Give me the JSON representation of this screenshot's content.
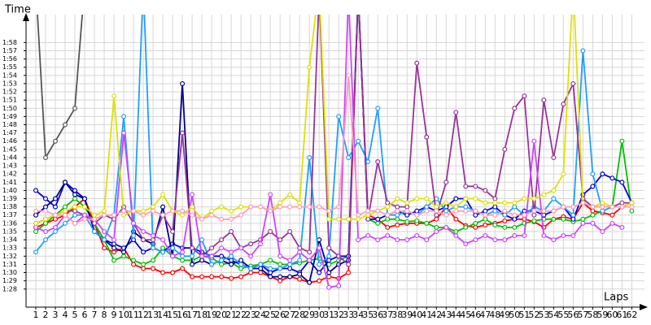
{
  "chart_data": {
    "type": "line",
    "x_label": "Laps",
    "y_label": "Time",
    "x": [
      1,
      2,
      3,
      4,
      5,
      6,
      7,
      8,
      9,
      10,
      11,
      12,
      13,
      14,
      15,
      16,
      17,
      18,
      19,
      20,
      21,
      22,
      23,
      24,
      25,
      26,
      27,
      28,
      29,
      30,
      31,
      32,
      33,
      34,
      35,
      36,
      37,
      38,
      39,
      40,
      41,
      42,
      43,
      44,
      45,
      46,
      47,
      48,
      49,
      50,
      51,
      52,
      53,
      54,
      55,
      56,
      57,
      58,
      59,
      60,
      61,
      62
    ],
    "xlim": [
      0,
      63.3
    ],
    "xticks": [
      1,
      2,
      3,
      4,
      5,
      6,
      7,
      8,
      9,
      10,
      11,
      12,
      13,
      14,
      15,
      16,
      17,
      18,
      19,
      20,
      21,
      22,
      23,
      24,
      25,
      26,
      27,
      28,
      29,
      30,
      31,
      32,
      33,
      34,
      35,
      36,
      37,
      38,
      39,
      40,
      41,
      42,
      43,
      44,
      45,
      46,
      47,
      48,
      49,
      50,
      51,
      52,
      53,
      54,
      55,
      56,
      57,
      58,
      59,
      60,
      61,
      62
    ],
    "ylim": [
      85.8,
      121.4
    ],
    "yticks": [
      {
        "value": 88,
        "label": "1:28"
      },
      {
        "value": 89,
        "label": "1:29"
      },
      {
        "value": 90,
        "label": "1:30"
      },
      {
        "value": 91,
        "label": "1:31"
      },
      {
        "value": 92,
        "label": "1:32"
      },
      {
        "value": 93,
        "label": "1:33"
      },
      {
        "value": 94,
        "label": "1:34"
      },
      {
        "value": 95,
        "label": "1:35"
      },
      {
        "value": 96,
        "label": "1:36"
      },
      {
        "value": 97,
        "label": "1:37"
      },
      {
        "value": 98,
        "label": "1:38"
      },
      {
        "value": 99,
        "label": "1:39"
      },
      {
        "value": 100,
        "label": "1:40"
      },
      {
        "value": 101,
        "label": "1:41"
      },
      {
        "value": 102,
        "label": "1:42"
      },
      {
        "value": 103,
        "label": "1:43"
      },
      {
        "value": 104,
        "label": "1:44"
      },
      {
        "value": 105,
        "label": "1:45"
      },
      {
        "value": 106,
        "label": "1:46"
      },
      {
        "value": 107,
        "label": "1:47"
      },
      {
        "value": 108,
        "label": "1:48"
      },
      {
        "value": 109,
        "label": "1:49"
      },
      {
        "value": 110,
        "label": "1:50"
      },
      {
        "value": 111,
        "label": "1:51"
      },
      {
        "value": 112,
        "label": "1:52"
      },
      {
        "value": 113,
        "label": "1:53"
      },
      {
        "value": 114,
        "label": "1:54"
      },
      {
        "value": 115,
        "label": "1:55"
      },
      {
        "value": 116,
        "label": "1:56"
      },
      {
        "value": 117,
        "label": "1:57"
      },
      {
        "value": 118,
        "label": "1:58"
      }
    ],
    "grid": true,
    "series": [
      {
        "color": "#ff0000",
        "values": [
          95.5,
          96,
          96.5,
          97,
          98,
          99,
          96,
          93,
          92.5,
          93,
          91,
          90.5,
          90.5,
          90,
          90,
          90.5,
          89.5,
          89.5,
          89.5,
          89.5,
          89.3,
          89.5,
          90,
          90,
          89.5,
          89,
          89.5,
          89.2,
          88.8,
          89,
          89.5,
          89.3,
          90,
          124,
          97,
          96.5,
          95.5,
          95.8,
          96,
          96,
          96,
          96.5,
          98,
          96.5,
          95.7,
          95.5,
          95.8,
          96,
          96.3,
          96.5,
          96.5,
          96.2,
          95.5,
          96.5,
          96.8,
          96.5,
          98.5,
          97.5,
          97.3,
          97,
          98,
          98.5
        ]
      },
      {
        "color": "#00c000",
        "values": [
          95,
          96,
          97,
          98,
          99,
          98,
          96,
          94,
          91.5,
          92,
          91.5,
          91,
          91.5,
          93,
          92,
          91.5,
          91.5,
          92,
          91.8,
          91,
          91.2,
          90.5,
          90.8,
          91,
          91.5,
          91,
          91,
          91.2,
          91.5,
          91.7,
          91,
          91.5,
          92,
          124,
          96.5,
          96,
          96.5,
          96.5,
          96.2,
          96.3,
          96,
          95.5,
          95.5,
          95,
          95.5,
          96,
          96.5,
          95.8,
          95.5,
          95.5,
          96,
          96.3,
          96.5,
          96.5,
          96.5,
          96.2,
          96.5,
          97,
          97.5,
          98,
          106,
          97.5
        ]
      },
      {
        "color": "#0000dd",
        "values": [
          100,
          99,
          98,
          101,
          100,
          99,
          95,
          94,
          93.5,
          93,
          94,
          92.5,
          93,
          92.5,
          93.5,
          93,
          93,
          92.5,
          92,
          92,
          91.5,
          91,
          90.5,
          91,
          90,
          90.5,
          90.5,
          90,
          91.5,
          90,
          91.5,
          92,
          92,
          124,
          96.5,
          96.5,
          97,
          97.5,
          97,
          97.5,
          98,
          97.5,
          98,
          99,
          99,
          97,
          97.5,
          98,
          97,
          96.5,
          97.5,
          97.5,
          97,
          97.5,
          98,
          96.5,
          99.5,
          100.5,
          102,
          101.5,
          101,
          98.5
        ]
      },
      {
        "color": "#00008b",
        "values": [
          97,
          98,
          99,
          101,
          99.5,
          99,
          95,
          94,
          93,
          92.5,
          95,
          94,
          93.5,
          98,
          92,
          113,
          91,
          91.5,
          91,
          91.5,
          91,
          91.5,
          90.5,
          90.5,
          89.5,
          89.5,
          89.5,
          89.8,
          88.8,
          94,
          90,
          91,
          91.5,
          null,
          null,
          null,
          null,
          null,
          null,
          null,
          null,
          null,
          null,
          null,
          null,
          null,
          null,
          null,
          null,
          null,
          null,
          null,
          null,
          null,
          null,
          null,
          null,
          null,
          null,
          null,
          null,
          null
        ]
      },
      {
        "color": "#1e9fff",
        "values": [
          92.5,
          94,
          95,
          96,
          97,
          97,
          95,
          94,
          97,
          109,
          94.5,
          125,
          93,
          92.5,
          93,
          92,
          92,
          94,
          91,
          91.5,
          92,
          91,
          90.5,
          91,
          90.5,
          90.5,
          91,
          91.5,
          104,
          91,
          92,
          109,
          104,
          106,
          103.5,
          110,
          97,
          97,
          97.5,
          97,
          98,
          99,
          97.5,
          98,
          98,
          97.5,
          97,
          97.5,
          97,
          98,
          97,
          98,
          97.5,
          99,
          98,
          97,
          117,
          102,
          97.5,
          98,
          98,
          98.5
        ]
      },
      {
        "color": "#993399",
        "values": [
          96,
          96.5,
          97,
          97.5,
          97.5,
          97,
          96,
          97,
          96.5,
          98,
          96,
          94,
          94,
          97,
          95,
          107,
          93,
          92,
          93,
          94,
          95,
          93,
          93.5,
          94,
          95,
          94,
          95,
          93,
          92.5,
          124,
          93,
          92,
          91,
          124,
          96.5,
          103.5,
          98.5,
          98,
          98,
          115.5,
          106.5,
          97,
          101,
          109.5,
          100.5,
          100.5,
          100,
          99,
          105,
          110,
          111.5,
          97,
          111,
          104,
          110.5,
          113,
          99,
          98,
          98,
          98,
          98.5,
          98.5
        ]
      },
      {
        "color": "#cc44ff",
        "values": [
          95.5,
          95,
          95.5,
          97,
          96,
          97,
          96.5,
          95,
          94,
          107,
          96,
          95,
          94.5,
          94,
          92,
          92.5,
          99.5,
          92,
          92,
          93,
          92.5,
          93,
          92,
          93.5,
          99.5,
          92,
          91.5,
          92.5,
          91.5,
          93,
          88.2,
          88.4,
          124,
          94,
          94.5,
          94,
          94.5,
          94,
          94,
          94.5,
          94,
          95,
          95.5,
          94.5,
          93.5,
          94,
          94.5,
          94,
          94,
          94.5,
          94.5,
          106,
          94.5,
          94,
          94.5,
          94.5,
          96,
          96,
          95,
          96,
          95.5,
          null
        ]
      },
      {
        "color": "#e0e000",
        "values": [
          96,
          96.5,
          97,
          97.5,
          98,
          98,
          97,
          97.5,
          111.5,
          97,
          97.5,
          97.5,
          98,
          99.5,
          97.5,
          97,
          98,
          96.5,
          97.5,
          98,
          97.5,
          98,
          98,
          98,
          97.5,
          98.5,
          99.5,
          98.5,
          115,
          125,
          96.5,
          96.5,
          96.5,
          96.5,
          97,
          97.5,
          98,
          99,
          98.5,
          99,
          99,
          98,
          98.5,
          98,
          99,
          99,
          98.5,
          98.5,
          98.5,
          98.5,
          99,
          99,
          99.5,
          100,
          102,
          125,
          98.5,
          98,
          98.5,
          98,
          98,
          98.5
        ]
      },
      {
        "color": "#ff99bb",
        "values": [
          97.5,
          97.5,
          97,
          97,
          96,
          96.5,
          96.5,
          97,
          97,
          97.5,
          97.5,
          97,
          97.5,
          97,
          97.5,
          97.5,
          97,
          96.5,
          97,
          96.5,
          96.5,
          97,
          98,
          98,
          97.5,
          98,
          98,
          98,
          98,
          98,
          97.5,
          98,
          114,
          97,
          97.5,
          97.5,
          97,
          97.5,
          97.5,
          97,
          97.5,
          97.5,
          97,
          97.5,
          97.5,
          97.5,
          97,
          97,
          97.5,
          97,
          97,
          97.5,
          97.5,
          97.5,
          98,
          98,
          98.5,
          98,
          98,
          98,
          98,
          98
        ]
      },
      {
        "color": "#555555",
        "values": [
          125,
          104,
          106,
          108,
          110,
          125,
          null,
          null,
          null,
          null,
          null,
          null,
          null,
          null,
          null,
          null,
          null,
          null,
          null,
          null,
          null,
          null,
          null,
          null,
          null,
          null,
          null,
          null,
          null,
          null,
          null,
          null,
          null,
          null,
          null,
          null,
          null,
          null,
          null,
          null,
          null,
          null,
          null,
          null,
          null,
          null,
          null,
          null,
          null,
          null,
          null,
          null,
          null,
          null,
          null,
          null,
          null,
          null,
          null,
          null,
          null,
          null
        ]
      }
    ]
  }
}
